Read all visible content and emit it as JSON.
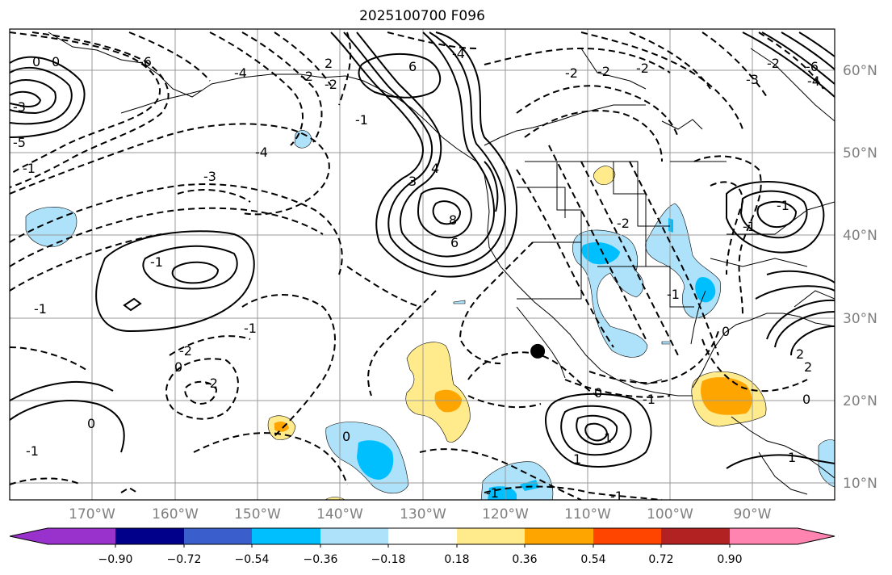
{
  "title": "2025100700 F096",
  "lat_labels": [
    "60°N",
    "50°N",
    "40°N",
    "30°N",
    "20°N",
    "10°N"
  ],
  "lon_labels": [
    "170°W",
    "160°W",
    "150°W",
    "140°W",
    "130°W",
    "120°W",
    "110°W",
    "100°W",
    "90°W"
  ],
  "colorbar": {
    "colors": [
      "#9932cc",
      "#00008b",
      "#3a5fcd",
      "#00bfff",
      "#aee2fa",
      "#ffffff",
      "#ffea8c",
      "#ffa500",
      "#ff4500",
      "#b22222",
      "#ff85b0"
    ],
    "tick_labels": [
      "−0.90",
      "−0.72",
      "−0.54",
      "−0.36",
      "−0.18",
      "0.18",
      "0.36",
      "0.54",
      "0.72",
      "0.90"
    ]
  },
  "contour_labels": [
    "0",
    "0",
    "-3",
    "-5",
    "-6",
    "-4",
    "-4",
    "-1",
    "-3",
    "-2",
    "-1",
    "-2",
    "-1",
    "-2",
    "0",
    "0",
    "-1",
    "-2",
    "2",
    "6",
    "-4",
    "3",
    "4",
    "8",
    "6",
    "-1",
    "-1",
    "-2",
    "0",
    "-2",
    "-1",
    "-1",
    "-2",
    "-2",
    "-3",
    "0",
    "-1",
    "2",
    "2",
    "0",
    "-1",
    "1",
    "-1",
    "-1",
    "0",
    "1",
    "1",
    "-6",
    "-4",
    "-2"
  ],
  "marker": {
    "lon": -116,
    "lat": 26
  }
}
